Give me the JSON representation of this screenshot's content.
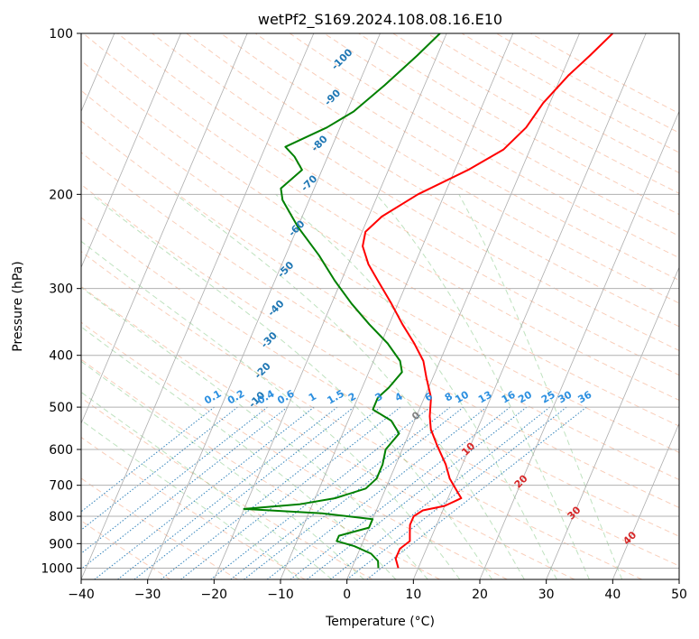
{
  "chart_data": {
    "type": "line",
    "title": "wetPf2_S169.2024.108.08.16.E10",
    "xlabel": "Temperature (°C)",
    "ylabel": "Pressure (hPa)",
    "xlim": [
      -40,
      50
    ],
    "ylim": [
      1050,
      100
    ],
    "y_scale": "log",
    "x_ticks": [
      -40,
      -30,
      -20,
      -10,
      0,
      10,
      20,
      30,
      40,
      50
    ],
    "x_tick_labels": [
      "−40",
      "−30",
      "−20",
      "−10",
      "0",
      "10",
      "20",
      "30",
      "40",
      "50"
    ],
    "y_ticks": [
      1000,
      900,
      800,
      700,
      600,
      500,
      400,
      300,
      200,
      100
    ],
    "y_tick_labels": [
      "1000",
      "900",
      "800",
      "700",
      "600",
      "500",
      "400",
      "300",
      "200",
      "100"
    ],
    "grid": true,
    "skew": "skew-T",
    "series": [
      {
        "color": "#ff0000",
        "points": [
          {
            "p": 1000,
            "t": 7.0
          },
          {
            "p": 960,
            "t": 6.0
          },
          {
            "p": 920,
            "t": 6.0
          },
          {
            "p": 890,
            "t": 7.0
          },
          {
            "p": 860,
            "t": 6.5
          },
          {
            "p": 830,
            "t": 6.0
          },
          {
            "p": 800,
            "t": 6.0
          },
          {
            "p": 780,
            "t": 7.0
          },
          {
            "p": 765,
            "t": 10.0
          },
          {
            "p": 740,
            "t": 12.0
          },
          {
            "p": 720,
            "t": 11.0
          },
          {
            "p": 680,
            "t": 9.0
          },
          {
            "p": 640,
            "t": 7.5
          },
          {
            "p": 590,
            "t": 5.0
          },
          {
            "p": 550,
            "t": 3.0
          },
          {
            "p": 520,
            "t": 2.0
          },
          {
            "p": 480,
            "t": 1.0
          },
          {
            "p": 440,
            "t": -1.0
          },
          {
            "p": 410,
            "t": -2.5
          },
          {
            "p": 380,
            "t": -5.0
          },
          {
            "p": 350,
            "t": -8.0
          },
          {
            "p": 320,
            "t": -11.0
          },
          {
            "p": 290,
            "t": -14.5
          },
          {
            "p": 270,
            "t": -17.0
          },
          {
            "p": 250,
            "t": -19.0
          },
          {
            "p": 235,
            "t": -19.5
          },
          {
            "p": 220,
            "t": -18.0
          },
          {
            "p": 200,
            "t": -14.0
          },
          {
            "p": 180,
            "t": -8.0
          },
          {
            "p": 165,
            "t": -4.0
          },
          {
            "p": 150,
            "t": -2.0
          },
          {
            "p": 135,
            "t": -1.0
          },
          {
            "p": 120,
            "t": 1.0
          },
          {
            "p": 110,
            "t": 3.0
          },
          {
            "p": 100,
            "t": 5.0
          }
        ]
      },
      {
        "color": "#008000",
        "points": [
          {
            "p": 1000,
            "t": 4.0
          },
          {
            "p": 970,
            "t": 3.5
          },
          {
            "p": 940,
            "t": 2.0
          },
          {
            "p": 910,
            "t": -1.0
          },
          {
            "p": 890,
            "t": -4.0
          },
          {
            "p": 870,
            "t": -4.0
          },
          {
            "p": 840,
            "t": 0.0
          },
          {
            "p": 810,
            "t": 0.0
          },
          {
            "p": 790,
            "t": -8.0
          },
          {
            "p": 775,
            "t": -20.0
          },
          {
            "p": 760,
            "t": -12.0
          },
          {
            "p": 740,
            "t": -7.0
          },
          {
            "p": 710,
            "t": -3.0
          },
          {
            "p": 680,
            "t": -2.0
          },
          {
            "p": 640,
            "t": -2.0
          },
          {
            "p": 600,
            "t": -2.5
          },
          {
            "p": 560,
            "t": -1.5
          },
          {
            "p": 530,
            "t": -3.5
          },
          {
            "p": 505,
            "t": -7.0
          },
          {
            "p": 480,
            "t": -7.0
          },
          {
            "p": 460,
            "t": -6.0
          },
          {
            "p": 430,
            "t": -5.0
          },
          {
            "p": 410,
            "t": -6.0
          },
          {
            "p": 380,
            "t": -9.0
          },
          {
            "p": 350,
            "t": -13.0
          },
          {
            "p": 320,
            "t": -17.0
          },
          {
            "p": 290,
            "t": -21.0
          },
          {
            "p": 260,
            "t": -25.0
          },
          {
            "p": 230,
            "t": -30.0
          },
          {
            "p": 205,
            "t": -34.0
          },
          {
            "p": 195,
            "t": -35.0
          },
          {
            "p": 180,
            "t": -33.0
          },
          {
            "p": 170,
            "t": -35.0
          },
          {
            "p": 163,
            "t": -37.0
          },
          {
            "p": 155,
            "t": -34.0
          },
          {
            "p": 150,
            "t": -32.0
          },
          {
            "p": 140,
            "t": -29.0
          },
          {
            "p": 125,
            "t": -26.0
          },
          {
            "p": 110,
            "t": -23.0
          },
          {
            "p": 100,
            "t": -21.0
          }
        ]
      }
    ],
    "annotations": {
      "isotherm_labels": {
        "color": "#1f77b4",
        "items": [
          {
            "text": "-100",
            "p": 112,
            "t": -34
          },
          {
            "text": "-90",
            "p": 132,
            "t": -33
          },
          {
            "text": "-80",
            "p": 161,
            "t": -32
          },
          {
            "text": "-70",
            "p": 191,
            "t": -31
          },
          {
            "text": "-60",
            "p": 232,
            "t": -30
          },
          {
            "text": "-50",
            "p": 277,
            "t": -29
          },
          {
            "text": "-40",
            "p": 327,
            "t": -28
          },
          {
            "text": "-30",
            "p": 375,
            "t": -27
          },
          {
            "text": "-20",
            "p": 428,
            "t": -26
          },
          {
            "text": "-10",
            "p": 485,
            "t": -25
          }
        ]
      },
      "mixing_ratio_labels": {
        "color": "#2b8fe0",
        "items": [
          {
            "text": "0.1",
            "t": -31.0
          },
          {
            "text": "0.2",
            "t": -27.5
          },
          {
            "text": "0.4",
            "t": -23.0
          },
          {
            "text": "0.6",
            "t": -20.0
          },
          {
            "text": "1",
            "t": -16.0
          },
          {
            "text": "1.5",
            "t": -12.5
          },
          {
            "text": "2",
            "t": -10.0
          },
          {
            "text": "3",
            "t": -6.0
          },
          {
            "text": "4",
            "t": -3.0
          },
          {
            "text": "6",
            "t": 1.5
          },
          {
            "text": "8",
            "t": 4.5
          },
          {
            "text": "10",
            "t": 6.5
          },
          {
            "text": "13",
            "t": 10.0
          },
          {
            "text": "16",
            "t": 13.5
          },
          {
            "text": "20",
            "t": 16.0
          },
          {
            "text": "25",
            "t": 19.5
          },
          {
            "text": "30",
            "t": 22.0
          },
          {
            "text": "36",
            "t": 25.0
          }
        ]
      },
      "moist_adiabat_labels": {
        "color": "#d62728",
        "items": [
          {
            "text": "0",
            "p": 520,
            "t": 0,
            "color": "#7f7f7f"
          },
          {
            "text": "10",
            "p": 600,
            "t": 10
          },
          {
            "text": "20",
            "p": 690,
            "t": 20
          },
          {
            "text": "30",
            "p": 790,
            "t": 30
          },
          {
            "text": "40",
            "p": 880,
            "t": 40
          }
        ]
      }
    }
  }
}
